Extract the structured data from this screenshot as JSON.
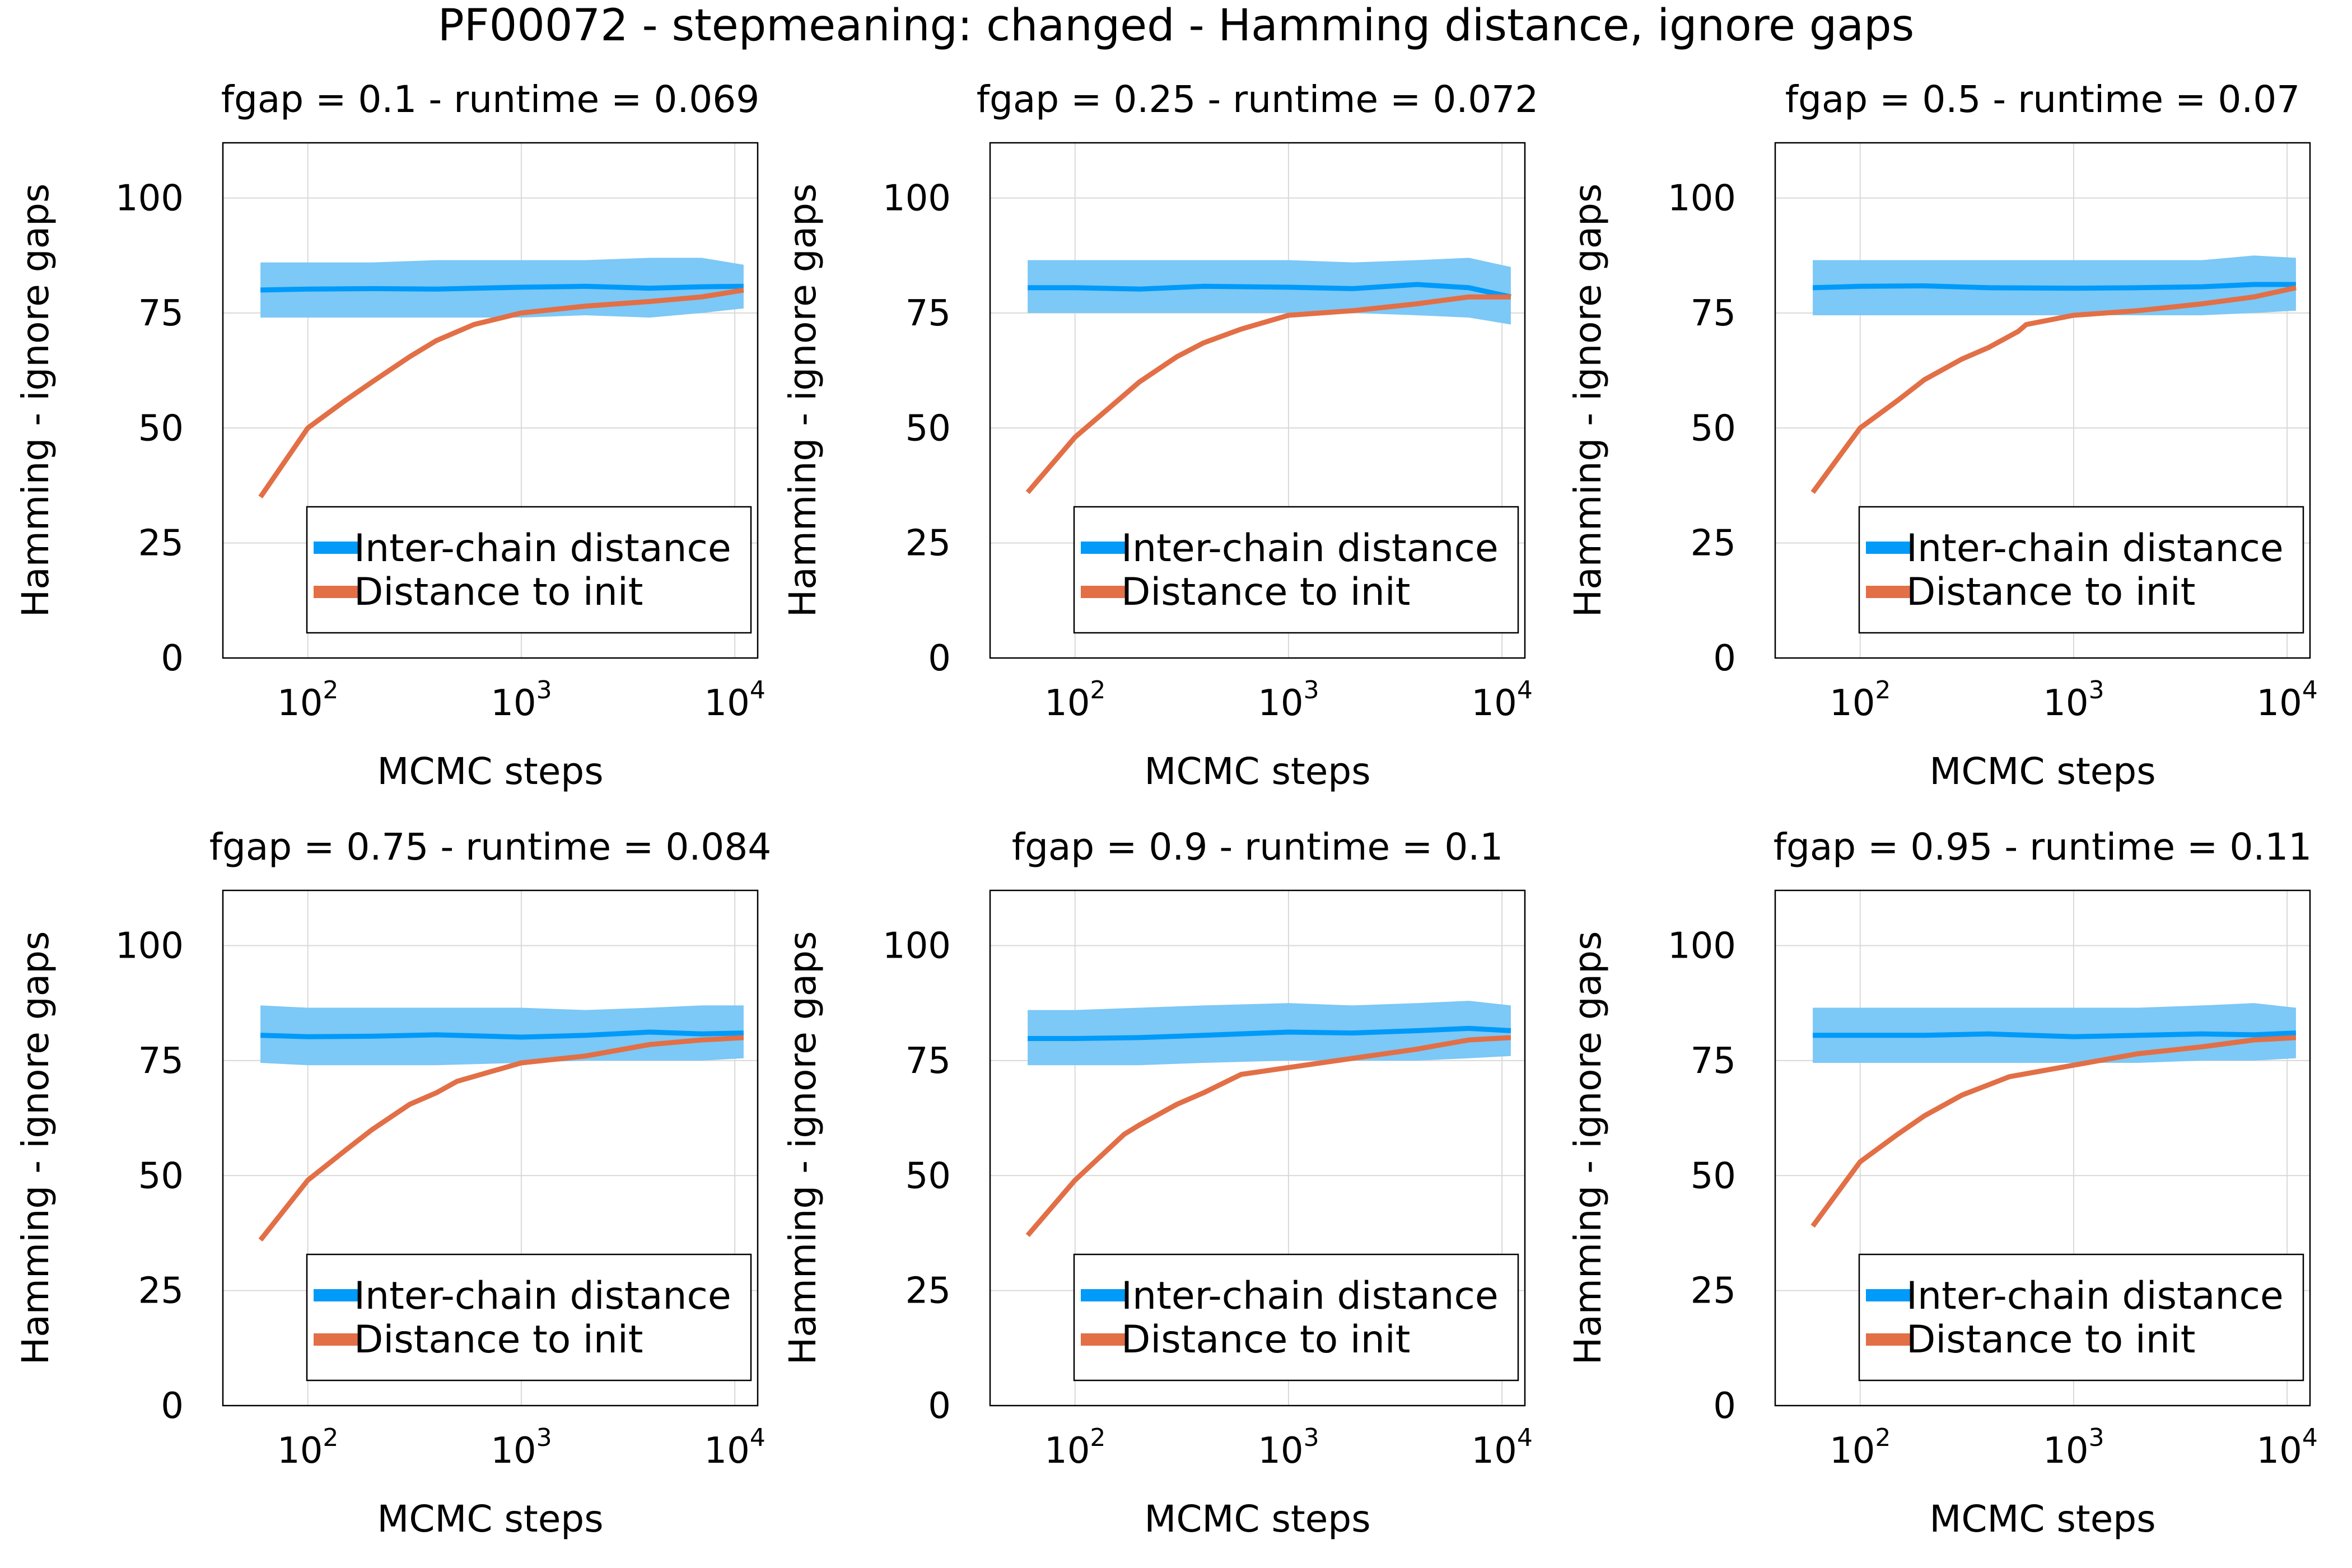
{
  "figure": {
    "title": "PF00072 - stepmeaning: changed - Hamming distance, ignore gaps"
  },
  "colors": {
    "inter_chain": "#009af9",
    "inter_chain_band": "#7cc8f6",
    "distance_to_init": "#e26f46",
    "grid": "#d9d9d9",
    "frame": "#000000"
  },
  "chart_data": [
    {
      "type": "line",
      "title": "fgap = 0.1 - runtime = 0.069",
      "xlabel": "MCMC steps",
      "ylabel": "Hamming - ignore gaps",
      "xscale": "log",
      "xlim": [
        40,
        12800
      ],
      "ylim": [
        0,
        112
      ],
      "yticks": [
        0,
        25,
        50,
        75,
        100
      ],
      "xticks": [
        {
          "base": "10",
          "exp": "2"
        },
        {
          "base": "10",
          "exp": "3"
        },
        {
          "base": "10",
          "exp": "4"
        }
      ],
      "grid": true,
      "legend": "bottom-right",
      "series": [
        {
          "name": "Inter-chain distance",
          "x": [
            60,
            100,
            200,
            400,
            1000,
            2000,
            4000,
            7000,
            11000
          ],
          "y": [
            80,
            80.2,
            80.3,
            80.2,
            80.6,
            80.8,
            80.4,
            80.7,
            80.8
          ],
          "band_low": [
            74,
            74,
            74,
            74,
            74,
            74.5,
            74,
            75,
            76
          ],
          "band_high": [
            86,
            86,
            86,
            86.5,
            86.5,
            86.5,
            87,
            87,
            85.5
          ]
        },
        {
          "name": "Distance to init",
          "x": [
            60,
            100,
            150,
            200,
            300,
            400,
            600,
            1000,
            2000,
            4000,
            7000,
            11000
          ],
          "y": [
            35,
            50,
            56,
            60,
            65.5,
            69,
            72.5,
            75,
            76.5,
            77.5,
            78.5,
            80
          ]
        }
      ]
    },
    {
      "type": "line",
      "title": "fgap = 0.25 - runtime = 0.072",
      "xlabel": "MCMC steps",
      "ylabel": "Hamming - ignore gaps",
      "xscale": "log",
      "xlim": [
        40,
        12800
      ],
      "ylim": [
        0,
        112
      ],
      "yticks": [
        0,
        25,
        50,
        75,
        100
      ],
      "xticks": [
        {
          "base": "10",
          "exp": "2"
        },
        {
          "base": "10",
          "exp": "3"
        },
        {
          "base": "10",
          "exp": "4"
        }
      ],
      "grid": true,
      "legend": "bottom-right",
      "series": [
        {
          "name": "Inter-chain distance",
          "x": [
            60,
            100,
            200,
            400,
            1000,
            2000,
            4000,
            7000,
            11000
          ],
          "y": [
            80.5,
            80.5,
            80.2,
            80.8,
            80.6,
            80.3,
            81.2,
            80.5,
            78.5
          ],
          "band_low": [
            75,
            75,
            75,
            75,
            75,
            75,
            74.5,
            74,
            72.5
          ],
          "band_high": [
            86.5,
            86.5,
            86.5,
            86.5,
            86.5,
            86,
            86.5,
            87,
            85
          ]
        },
        {
          "name": "Distance to init",
          "x": [
            60,
            100,
            150,
            200,
            300,
            400,
            600,
            1000,
            2000,
            4000,
            7000,
            11000
          ],
          "y": [
            36,
            48,
            55,
            60,
            65.5,
            68.5,
            71.5,
            74.5,
            75.5,
            77,
            78.5,
            78.5
          ]
        }
      ]
    },
    {
      "type": "line",
      "title": "fgap = 0.5 - runtime = 0.07",
      "xlabel": "MCMC steps",
      "ylabel": "Hamming - ignore gaps",
      "xscale": "log",
      "xlim": [
        40,
        12800
      ],
      "ylim": [
        0,
        112
      ],
      "yticks": [
        0,
        25,
        50,
        75,
        100
      ],
      "xticks": [
        {
          "base": "10",
          "exp": "2"
        },
        {
          "base": "10",
          "exp": "3"
        },
        {
          "base": "10",
          "exp": "4"
        }
      ],
      "grid": true,
      "legend": "bottom-right",
      "series": [
        {
          "name": "Inter-chain distance",
          "x": [
            60,
            100,
            200,
            400,
            1000,
            2000,
            4000,
            7000,
            11000
          ],
          "y": [
            80.5,
            80.8,
            80.9,
            80.5,
            80.4,
            80.5,
            80.7,
            81.2,
            81.2
          ],
          "band_low": [
            74.5,
            74.5,
            74.5,
            74.5,
            74.5,
            74.5,
            74.5,
            75,
            75.5
          ],
          "band_high": [
            86.5,
            86.5,
            86.5,
            86.5,
            86.5,
            86.5,
            86.5,
            87.5,
            87
          ]
        },
        {
          "name": "Distance to init",
          "x": [
            60,
            100,
            150,
            200,
            300,
            400,
            550,
            600,
            1000,
            2000,
            4000,
            7000,
            11000
          ],
          "y": [
            36,
            50,
            56,
            60.5,
            65,
            67.5,
            71,
            72.5,
            74.5,
            75.5,
            77,
            78.5,
            80.5
          ]
        }
      ]
    },
    {
      "type": "line",
      "title": "fgap = 0.75 - runtime = 0.084",
      "xlabel": "MCMC steps",
      "ylabel": "Hamming - ignore gaps",
      "xscale": "log",
      "xlim": [
        40,
        12800
      ],
      "ylim": [
        0,
        112
      ],
      "yticks": [
        0,
        25,
        50,
        75,
        100
      ],
      "xticks": [
        {
          "base": "10",
          "exp": "2"
        },
        {
          "base": "10",
          "exp": "3"
        },
        {
          "base": "10",
          "exp": "4"
        }
      ],
      "grid": true,
      "legend": "bottom-right",
      "series": [
        {
          "name": "Inter-chain distance",
          "x": [
            60,
            100,
            200,
            400,
            1000,
            2000,
            4000,
            7000,
            11000
          ],
          "y": [
            80.5,
            80.2,
            80.3,
            80.6,
            80.1,
            80.5,
            81.2,
            80.8,
            81
          ],
          "band_low": [
            74.5,
            74,
            74,
            74,
            74.5,
            75,
            75,
            75,
            75.5
          ],
          "band_high": [
            87,
            86.5,
            86.5,
            86.5,
            86.5,
            86,
            86.5,
            87,
            87
          ]
        },
        {
          "name": "Distance to init",
          "x": [
            60,
            100,
            150,
            200,
            300,
            400,
            500,
            1000,
            2000,
            4000,
            7000,
            11000
          ],
          "y": [
            36,
            49,
            55.5,
            60,
            65.5,
            68,
            70.5,
            74.5,
            76,
            78.5,
            79.5,
            80
          ]
        }
      ]
    },
    {
      "type": "line",
      "title": "fgap = 0.9 - runtime = 0.1",
      "xlabel": "MCMC steps",
      "ylabel": "Hamming - ignore gaps",
      "xscale": "log",
      "xlim": [
        40,
        12800
      ],
      "ylim": [
        0,
        112
      ],
      "yticks": [
        0,
        25,
        50,
        75,
        100
      ],
      "xticks": [
        {
          "base": "10",
          "exp": "2"
        },
        {
          "base": "10",
          "exp": "3"
        },
        {
          "base": "10",
          "exp": "4"
        }
      ],
      "grid": true,
      "legend": "bottom-right",
      "series": [
        {
          "name": "Inter-chain distance",
          "x": [
            60,
            100,
            200,
            400,
            1000,
            2000,
            4000,
            7000,
            11000
          ],
          "y": [
            79.8,
            79.8,
            80,
            80.5,
            81.2,
            81,
            81.5,
            82,
            81.5
          ],
          "band_low": [
            74,
            74,
            74,
            74.5,
            75,
            75,
            75,
            75.5,
            76
          ],
          "band_high": [
            86,
            86,
            86.5,
            87,
            87.5,
            87,
            87.5,
            88,
            87
          ]
        },
        {
          "name": "Distance to init",
          "x": [
            60,
            100,
            170,
            200,
            300,
            400,
            600,
            1000,
            2000,
            4000,
            7000,
            11000
          ],
          "y": [
            37,
            49,
            59,
            61,
            65.5,
            68,
            72,
            73.5,
            75.5,
            77.5,
            79.5,
            80
          ]
        }
      ]
    },
    {
      "type": "line",
      "title": "fgap = 0.95 - runtime = 0.11",
      "xlabel": "MCMC steps",
      "ylabel": "Hamming - ignore gaps",
      "xscale": "log",
      "xlim": [
        40,
        12800
      ],
      "ylim": [
        0,
        112
      ],
      "yticks": [
        0,
        25,
        50,
        75,
        100
      ],
      "xticks": [
        {
          "base": "10",
          "exp": "2"
        },
        {
          "base": "10",
          "exp": "3"
        },
        {
          "base": "10",
          "exp": "4"
        }
      ],
      "grid": true,
      "legend": "bottom-right",
      "series": [
        {
          "name": "Inter-chain distance",
          "x": [
            60,
            100,
            200,
            400,
            1000,
            2000,
            4000,
            7000,
            11000
          ],
          "y": [
            80.5,
            80.5,
            80.5,
            80.8,
            80.2,
            80.5,
            80.8,
            80.6,
            81
          ],
          "band_low": [
            74.5,
            74.5,
            74.5,
            74.5,
            74.5,
            74.5,
            75,
            75,
            75.5
          ],
          "band_high": [
            86.5,
            86.5,
            86.5,
            86.5,
            86.5,
            86.5,
            87,
            87.5,
            86.5
          ]
        },
        {
          "name": "Distance to init",
          "x": [
            60,
            100,
            150,
            200,
            300,
            500,
            1000,
            2000,
            4000,
            7000,
            11000
          ],
          "y": [
            39,
            53,
            59,
            63,
            67.5,
            71.5,
            74,
            76.5,
            78,
            79.5,
            80
          ]
        }
      ]
    }
  ]
}
